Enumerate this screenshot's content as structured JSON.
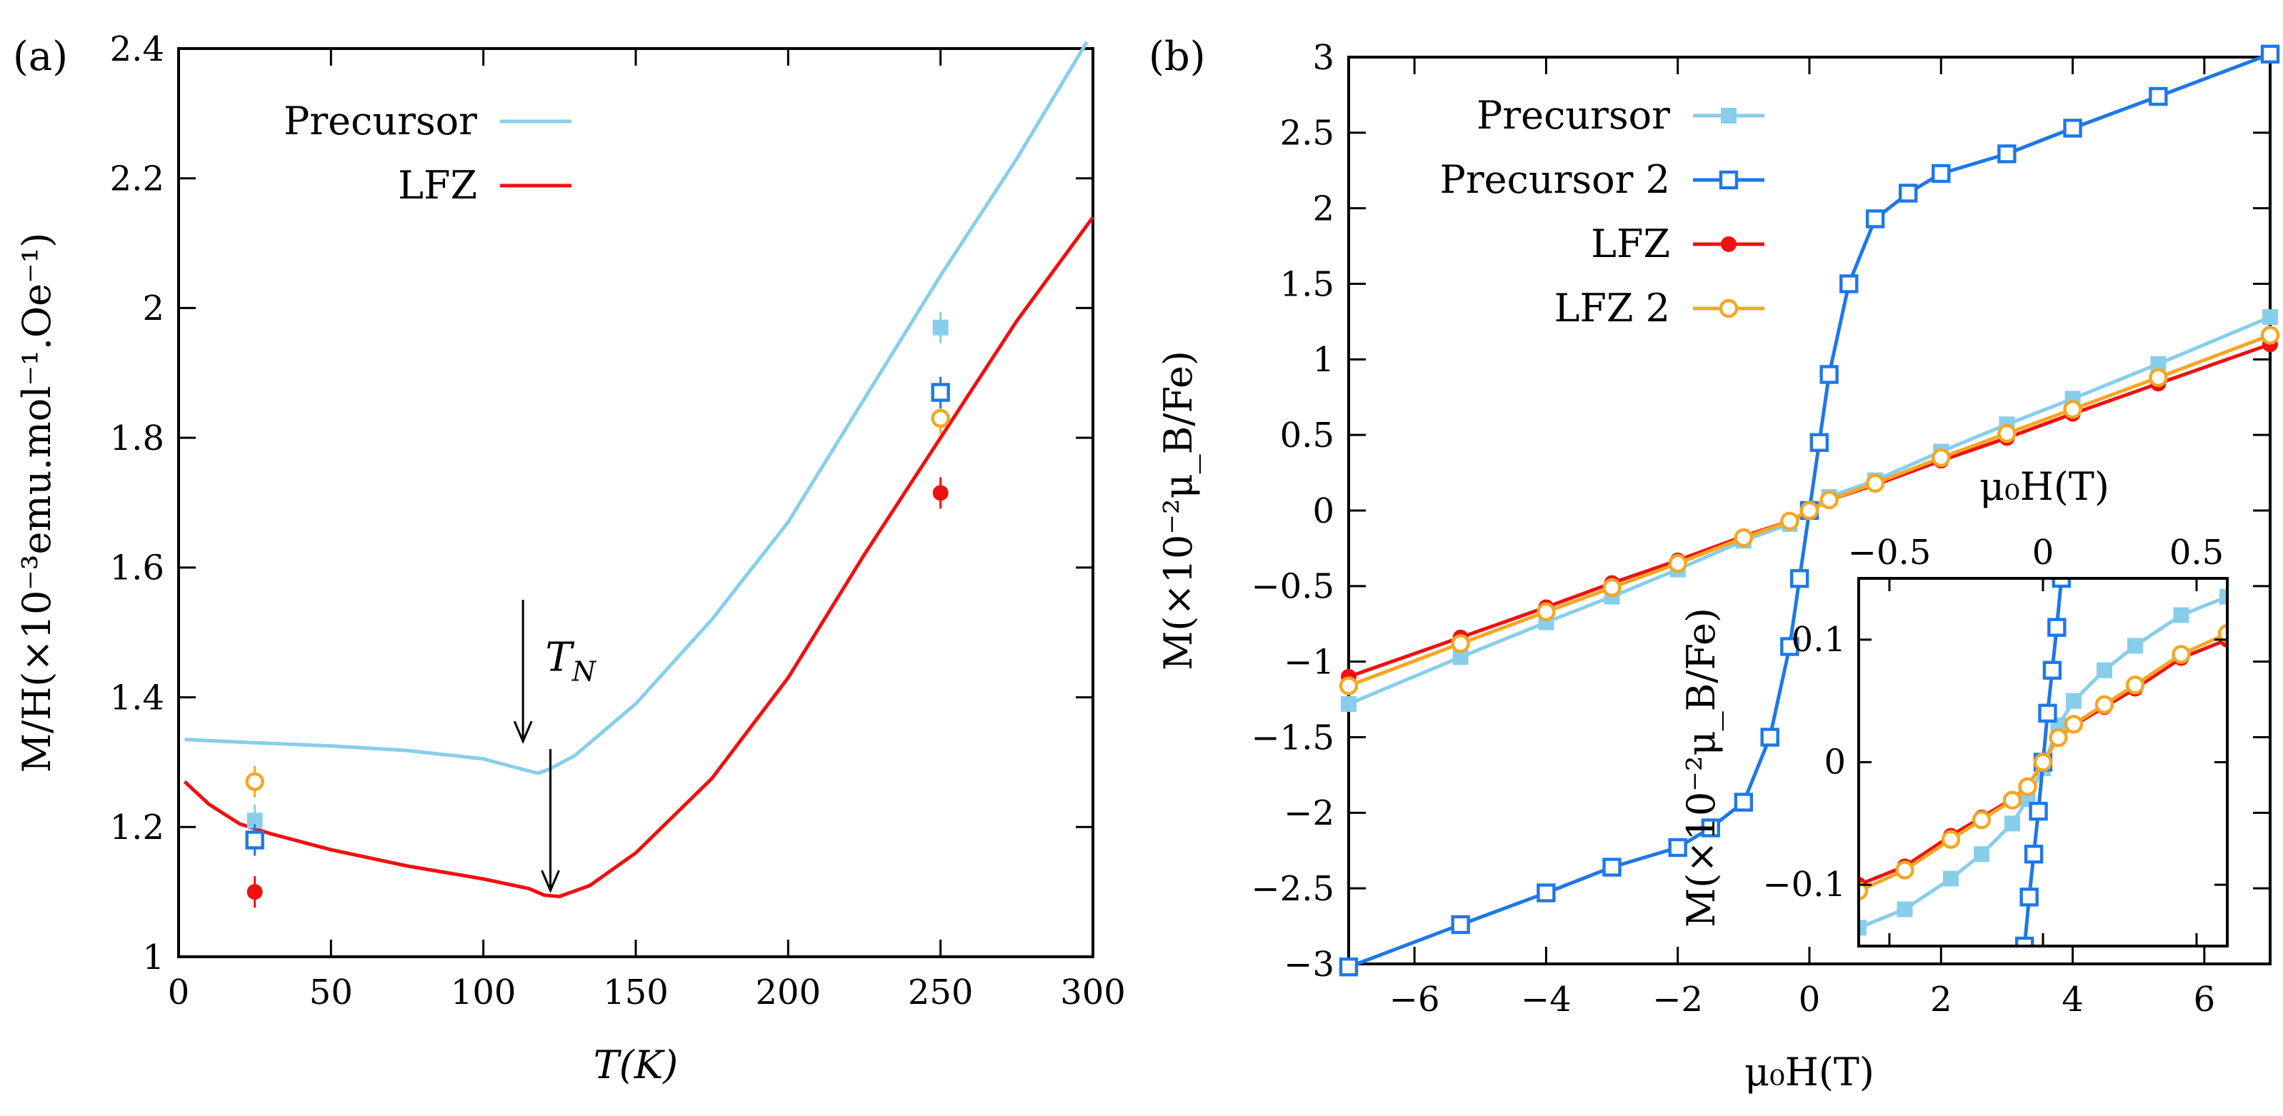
{
  "chart_data": [
    {
      "panel_label": "(a)",
      "type": "line",
      "xlabel": "T(K)",
      "ylabel": "M/H(×10⁻³emu.mol⁻¹.Oe⁻¹)",
      "xlim": [
        0,
        300
      ],
      "ylim": [
        1,
        2.4
      ],
      "xticks": [
        "0",
        "50",
        "100",
        "150",
        "200",
        "250",
        "300"
      ],
      "yticks": [
        "1",
        "1.2",
        "1.4",
        "1.6",
        "1.8",
        "2",
        "2.2",
        "2.4"
      ],
      "legend_position": "top-left",
      "series": [
        {
          "name": "Precursor",
          "color": "#87ceeb",
          "x": [
            2,
            10,
            25,
            50,
            75,
            100,
            112,
            118,
            122,
            130,
            140,
            150,
            175,
            200,
            225,
            250,
            275,
            298
          ],
          "y": [
            1.335,
            1.333,
            1.33,
            1.325,
            1.318,
            1.305,
            1.29,
            1.283,
            1.29,
            1.31,
            1.35,
            1.39,
            1.52,
            1.67,
            1.86,
            2.05,
            2.23,
            2.41
          ]
        },
        {
          "name": "LFZ",
          "color": "#ee1111",
          "x": [
            2,
            10,
            20,
            30,
            50,
            75,
            100,
            115,
            120,
            125,
            135,
            150,
            175,
            200,
            225,
            250,
            275,
            300
          ],
          "y": [
            1.27,
            1.235,
            1.205,
            1.19,
            1.165,
            1.14,
            1.12,
            1.105,
            1.095,
            1.093,
            1.11,
            1.16,
            1.275,
            1.43,
            1.62,
            1.8,
            1.98,
            2.14
          ]
        }
      ],
      "points": [
        {
          "name": "LFZ 2",
          "color": "#f5a623",
          "marker": "open-circle",
          "x": [
            25,
            250
          ],
          "y": [
            1.27,
            1.83
          ]
        },
        {
          "name": "Precursor",
          "color": "#87ceeb",
          "marker": "filled-square",
          "x": [
            25,
            250
          ],
          "y": [
            1.21,
            1.97
          ]
        },
        {
          "name": "Precursor 2",
          "color": "#1e78e6",
          "marker": "open-square",
          "x": [
            25,
            250
          ],
          "y": [
            1.18,
            1.87
          ]
        },
        {
          "name": "LFZ",
          "color": "#ee1111",
          "marker": "filled-circle",
          "x": [
            25,
            250
          ],
          "y": [
            1.1,
            1.715
          ]
        }
      ],
      "annotations": [
        {
          "text": "T_N",
          "arrows_at": [
            [
              113,
              1.33
            ],
            [
              122,
              1.1
            ]
          ]
        }
      ]
    },
    {
      "panel_label": "(b)",
      "type": "line",
      "xlabel": "μ₀H(T)",
      "ylabel": "M(×10⁻²μ_B/Fe)",
      "xlim": [
        -7,
        7
      ],
      "ylim": [
        -3,
        3
      ],
      "xticks": [
        "−6",
        "−4",
        "−2",
        "0",
        "2",
        "4",
        "6"
      ],
      "yticks": [
        "−3",
        "−2.5",
        "−2",
        "−1.5",
        "−1",
        "−0.5",
        "0",
        "0.5",
        "1",
        "1.5",
        "2",
        "2.5",
        "3"
      ],
      "legend_position": "top-left",
      "series": [
        {
          "name": "Precursor",
          "color": "#87ceeb",
          "marker": "filled-square",
          "x": [
            -7,
            -5.3,
            -4,
            -3,
            -2,
            -1,
            -0.3,
            0,
            0.3,
            1,
            2,
            3,
            4,
            5.3,
            7
          ],
          "y": [
            -1.28,
            -0.97,
            -0.74,
            -0.57,
            -0.39,
            -0.2,
            -0.09,
            0,
            0.09,
            0.2,
            0.39,
            0.57,
            0.74,
            0.97,
            1.28
          ]
        },
        {
          "name": "Precursor 2",
          "color": "#1e78e6",
          "marker": "open-square",
          "x": [
            -7,
            -5.3,
            -4,
            -3,
            -2,
            -1.5,
            -1,
            -0.6,
            -0.3,
            -0.15,
            0,
            0.15,
            0.3,
            0.6,
            1,
            1.5,
            2,
            3,
            4,
            5.3,
            7
          ],
          "y": [
            -3.02,
            -2.74,
            -2.53,
            -2.36,
            -2.23,
            -2.1,
            -1.93,
            -1.5,
            -0.9,
            -0.45,
            0,
            0.45,
            0.9,
            1.5,
            1.93,
            2.1,
            2.23,
            2.36,
            2.53,
            2.74,
            3.02
          ]
        },
        {
          "name": "LFZ",
          "color": "#ee1111",
          "marker": "filled-circle",
          "x": [
            -7,
            -5.3,
            -4,
            -3,
            -2,
            -1,
            -0.3,
            0,
            0.3,
            1,
            2,
            3,
            4,
            5.3,
            7
          ],
          "y": [
            -1.1,
            -0.84,
            -0.64,
            -0.48,
            -0.33,
            -0.17,
            -0.07,
            0,
            0.07,
            0.17,
            0.33,
            0.48,
            0.64,
            0.84,
            1.1
          ]
        },
        {
          "name": "LFZ 2",
          "color": "#f5a623",
          "marker": "open-circle",
          "x": [
            -7,
            -5.3,
            -4,
            -3,
            -2,
            -1,
            -0.3,
            0,
            0.3,
            1,
            2,
            3,
            4,
            5.3,
            7
          ],
          "y": [
            -1.16,
            -0.88,
            -0.67,
            -0.51,
            -0.35,
            -0.18,
            -0.07,
            0,
            0.07,
            0.18,
            0.35,
            0.51,
            0.67,
            0.88,
            1.16
          ]
        }
      ],
      "inset": {
        "xlabel": "μ₀H(T)",
        "ylabel": "M(×10⁻²μ_B/Fe)",
        "xlim": [
          -0.6,
          0.6
        ],
        "ylim": [
          -0.15,
          0.15
        ],
        "xticks": [
          "−0.5",
          "0",
          "0.5"
        ],
        "yticks": [
          "−0.1",
          "0",
          "0.1"
        ],
        "series": [
          {
            "name": "Precursor",
            "color": "#87ceeb",
            "marker": "filled-square",
            "x": [
              -0.6,
              -0.45,
              -0.3,
              -0.2,
              -0.1,
              -0.05,
              0,
              0.05,
              0.1,
              0.2,
              0.3,
              0.45,
              0.6
            ],
            "y": [
              -0.135,
              -0.12,
              -0.095,
              -0.075,
              -0.05,
              -0.03,
              -0.005,
              0.03,
              0.05,
              0.075,
              0.095,
              0.12,
              0.135
            ]
          },
          {
            "name": "Precursor 2",
            "color": "#1e78e6",
            "marker": "open-square",
            "x": [
              -0.06,
              -0.045,
              -0.03,
              -0.015,
              0,
              0.015,
              0.03,
              0.045,
              0.06
            ],
            "y": [
              -0.15,
              -0.11,
              -0.075,
              -0.04,
              0,
              0.04,
              0.075,
              0.11,
              0.15
            ]
          },
          {
            "name": "LFZ",
            "color": "#ee1111",
            "marker": "filled-circle",
            "x": [
              -0.6,
              -0.45,
              -0.3,
              -0.2,
              -0.1,
              -0.05,
              0,
              0.05,
              0.1,
              0.2,
              0.3,
              0.45,
              0.6
            ],
            "y": [
              -0.1,
              -0.085,
              -0.06,
              -0.045,
              -0.03,
              -0.02,
              0,
              0.02,
              0.03,
              0.045,
              0.06,
              0.085,
              0.1
            ]
          },
          {
            "name": "LFZ 2",
            "color": "#f5a623",
            "marker": "open-circle",
            "x": [
              -0.6,
              -0.45,
              -0.3,
              -0.2,
              -0.1,
              -0.05,
              0,
              0.05,
              0.1,
              0.2,
              0.3,
              0.45,
              0.6
            ],
            "y": [
              -0.105,
              -0.088,
              -0.063,
              -0.047,
              -0.031,
              -0.02,
              0,
              0.02,
              0.031,
              0.047,
              0.063,
              0.088,
              0.105
            ]
          }
        ]
      }
    }
  ]
}
